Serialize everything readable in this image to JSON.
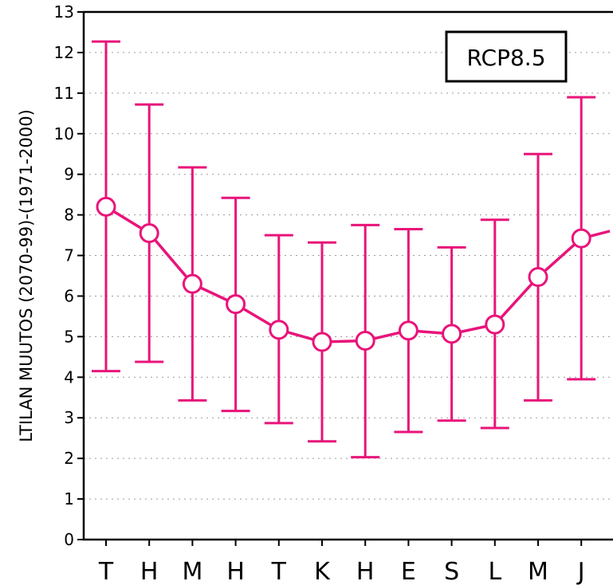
{
  "chart_data": {
    "type": "line",
    "categories": [
      "T",
      "H",
      "M",
      "H",
      "T",
      "K",
      "H",
      "E",
      "S",
      "L",
      "M",
      "J"
    ],
    "series": [
      {
        "values": [
          8.2,
          7.55,
          6.3,
          5.8,
          5.17,
          4.87,
          4.9,
          5.15,
          5.07,
          5.3,
          6.47,
          7.42
        ],
        "upper": [
          12.27,
          10.72,
          9.17,
          8.42,
          7.5,
          7.32,
          7.75,
          7.65,
          7.2,
          7.88,
          9.5,
          10.9
        ],
        "lower": [
          4.15,
          4.38,
          3.43,
          3.17,
          2.87,
          2.42,
          2.03,
          2.65,
          2.93,
          2.75,
          3.43,
          3.95
        ]
      }
    ],
    "trailing_value": 7.6,
    "title": "",
    "xlabel": "",
    "ylabel": "LTILAN MUUTOS (2070-99)-(1971-2000)",
    "ylim": [
      0,
      13
    ],
    "yticks": [
      "0",
      "1",
      "2",
      "3",
      "4",
      "5",
      "6",
      "7",
      "8",
      "9",
      "10",
      "11",
      "12",
      "13"
    ],
    "legend": "RCP8.5",
    "legend_position": "top-right",
    "grid": "horizontal dotted",
    "color": "#e8147a"
  }
}
